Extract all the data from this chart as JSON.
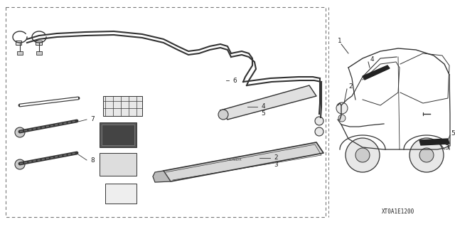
{
  "bg_color": "#ffffff",
  "lc": "#333333",
  "tc": "#222222",
  "fig_width": 6.4,
  "fig_height": 3.19,
  "code_text": "XT0A1E1200"
}
